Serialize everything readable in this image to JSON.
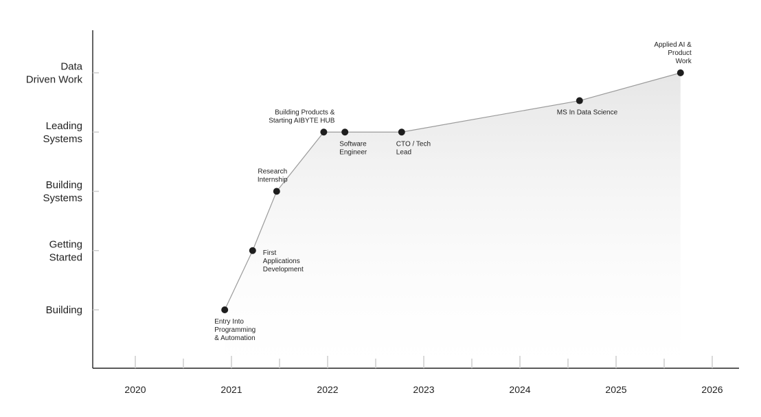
{
  "chart_data": {
    "type": "area",
    "title": "",
    "xlabel": "",
    "ylabel": "",
    "xlim": [
      2019.6,
      2026.3
    ],
    "x_ticks": [
      2020,
      2021,
      2022,
      2023,
      2024,
      2025,
      2026
    ],
    "minor_x_ticks": [
      2020.5,
      2021.5,
      2022.5,
      2023.5,
      2024.5,
      2025.5
    ],
    "y_levels": [
      {
        "value": 1,
        "label": [
          "Building"
        ]
      },
      {
        "value": 2,
        "label": [
          "Getting",
          "Started"
        ]
      },
      {
        "value": 3,
        "label": [
          "Building",
          "Systems"
        ]
      },
      {
        "value": 4,
        "label": [
          "Leading",
          "Systems"
        ]
      },
      {
        "value": 5,
        "label": [
          "Data",
          "Driven Work"
        ]
      }
    ],
    "ylim": [
      0,
      5.7
    ],
    "grid": false,
    "points": [
      {
        "x": 2020.93,
        "y": 1.0,
        "label": [
          "Entry Into",
          "Programming",
          "& Automation"
        ],
        "label_pos": "below"
      },
      {
        "x": 2021.22,
        "y": 2.0,
        "label": [
          "First",
          "Applications",
          "Development"
        ],
        "label_pos": "right"
      },
      {
        "x": 2021.47,
        "y": 3.0,
        "label": [
          "Research",
          "Internship"
        ],
        "label_pos": "above"
      },
      {
        "x": 2021.96,
        "y": 4.0,
        "label": [
          "Building Products &",
          "Starting AIBYTE HUB"
        ],
        "label_pos": "above-left"
      },
      {
        "x": 2022.18,
        "y": 4.0,
        "label": [
          "Software",
          "Engineer"
        ],
        "label_pos": "below"
      },
      {
        "x": 2022.77,
        "y": 4.0,
        "label": [
          "CTO / Tech",
          "Lead"
        ],
        "label_pos": "below"
      },
      {
        "x": 2024.62,
        "y": 4.53,
        "label": [
          "MS In Data Science"
        ],
        "label_pos": "below"
      },
      {
        "x": 2025.67,
        "y": 5.0,
        "label": [
          "Applied AI &",
          "Product",
          "Work"
        ],
        "label_pos": "above-left"
      }
    ],
    "colors": {
      "line": "#9a9a9a",
      "marker": "#1e1e1e",
      "axis": "#222222",
      "tick": "#cccccc",
      "fill_top": "#e6e6e6",
      "fill_bottom": "#ffffff"
    }
  }
}
